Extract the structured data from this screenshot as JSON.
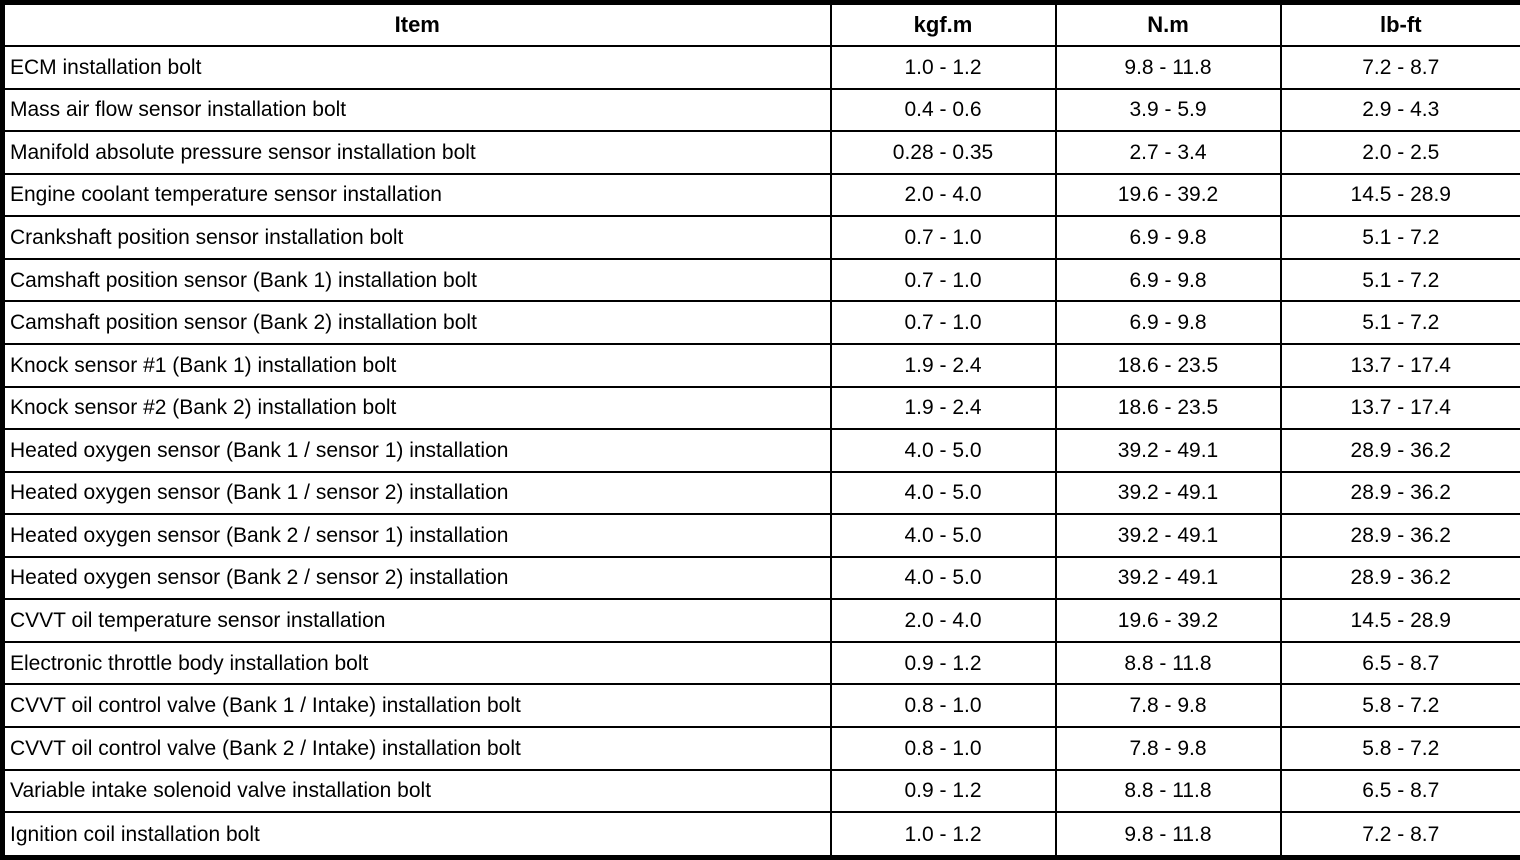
{
  "table": {
    "columns": [
      "Item",
      "kgf.m",
      "N.m",
      "lb-ft"
    ],
    "rows": [
      {
        "item": "ECM installation bolt",
        "kgfm": "1.0 - 1.2",
        "nm": "9.8 - 11.8",
        "lbft": "7.2 - 8.7"
      },
      {
        "item": "Mass air flow sensor installation bolt",
        "kgfm": "0.4 - 0.6",
        "nm": "3.9 - 5.9",
        "lbft": "2.9 - 4.3"
      },
      {
        "item": "Manifold absolute pressure sensor installation bolt",
        "kgfm": "0.28 - 0.35",
        "nm": "2.7 - 3.4",
        "lbft": "2.0 - 2.5"
      },
      {
        "item": "Engine coolant temperature sensor installation",
        "kgfm": "2.0 - 4.0",
        "nm": "19.6 - 39.2",
        "lbft": "14.5 - 28.9"
      },
      {
        "item": "Crankshaft position sensor installation bolt",
        "kgfm": "0.7 - 1.0",
        "nm": "6.9 - 9.8",
        "lbft": "5.1 - 7.2"
      },
      {
        "item": "Camshaft position sensor (Bank 1) installation bolt",
        "kgfm": "0.7 - 1.0",
        "nm": "6.9 - 9.8",
        "lbft": "5.1 - 7.2"
      },
      {
        "item": "Camshaft position sensor (Bank 2) installation bolt",
        "kgfm": "0.7 - 1.0",
        "nm": "6.9 - 9.8",
        "lbft": "5.1 - 7.2"
      },
      {
        "item": "Knock sensor #1 (Bank 1) installation bolt",
        "kgfm": "1.9 - 2.4",
        "nm": "18.6 - 23.5",
        "lbft": "13.7 - 17.4"
      },
      {
        "item": "Knock sensor #2 (Bank 2) installation bolt",
        "kgfm": "1.9 - 2.4",
        "nm": "18.6 - 23.5",
        "lbft": "13.7 - 17.4"
      },
      {
        "item": "Heated oxygen sensor (Bank 1 / sensor 1) installation",
        "kgfm": "4.0 - 5.0",
        "nm": "39.2 - 49.1",
        "lbft": "28.9 - 36.2"
      },
      {
        "item": "Heated oxygen sensor (Bank 1 / sensor 2) installation",
        "kgfm": "4.0 - 5.0",
        "nm": "39.2 - 49.1",
        "lbft": "28.9 - 36.2"
      },
      {
        "item": "Heated oxygen sensor (Bank 2 / sensor 1) installation",
        "kgfm": "4.0 - 5.0",
        "nm": "39.2 - 49.1",
        "lbft": "28.9 - 36.2"
      },
      {
        "item": "Heated oxygen sensor (Bank 2 / sensor 2) installation",
        "kgfm": "4.0 - 5.0",
        "nm": "39.2 - 49.1",
        "lbft": "28.9 - 36.2"
      },
      {
        "item": "CVVT oil temperature sensor installation",
        "kgfm": "2.0 - 4.0",
        "nm": "19.6 - 39.2",
        "lbft": "14.5 - 28.9"
      },
      {
        "item": "Electronic throttle body installation bolt",
        "kgfm": "0.9 - 1.2",
        "nm": "8.8 - 11.8",
        "lbft": "6.5 - 8.7"
      },
      {
        "item": "CVVT oil control valve (Bank 1 / Intake) installation bolt",
        "kgfm": "0.8 - 1.0",
        "nm": "7.8 - 9.8",
        "lbft": "5.8 - 7.2"
      },
      {
        "item": "CVVT oil control valve (Bank 2 / Intake) installation bolt",
        "kgfm": "0.8 - 1.0",
        "nm": "7.8 - 9.8",
        "lbft": "5.8 - 7.2"
      },
      {
        "item": "Variable intake solenoid valve installation bolt",
        "kgfm": "0.9 - 1.2",
        "nm": "8.8 - 11.8",
        "lbft": "6.5 - 8.7"
      },
      {
        "item": "Ignition coil installation bolt",
        "kgfm": "1.0 - 1.2",
        "nm": "9.8 - 11.8",
        "lbft": "7.2 - 8.7"
      }
    ]
  }
}
